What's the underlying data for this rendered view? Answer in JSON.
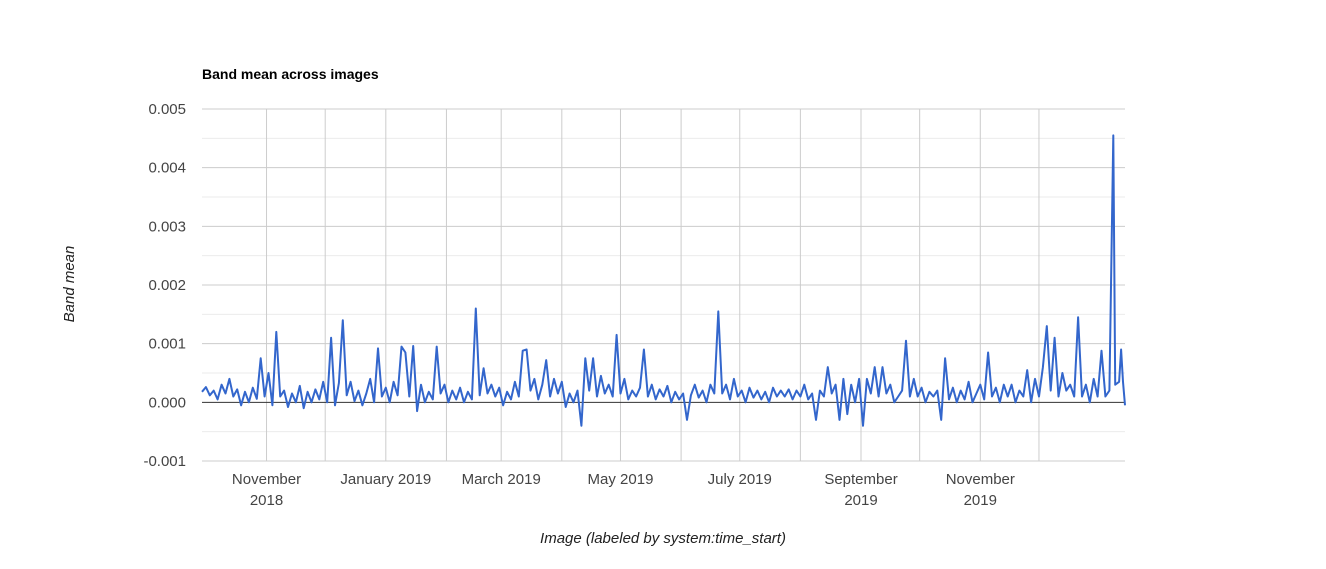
{
  "chart_data": {
    "type": "line",
    "title": "Band mean across images",
    "xlabel": "Image (labeled by system:time_start)",
    "ylabel": "Band mean",
    "ylim": [
      -0.001,
      0.005
    ],
    "xlim": [
      "2018-09-29",
      "2020-01-14"
    ],
    "y_ticks": [
      "-0.001",
      "0.000",
      "0.001",
      "0.002",
      "0.003",
      "0.004",
      "0.005"
    ],
    "y_tick_values": [
      -0.001,
      0,
      0.001,
      0.002,
      0.003,
      0.004,
      0.005
    ],
    "x_ticks": [
      {
        "date": "2018-11-01",
        "lines": [
          "November",
          "2018"
        ]
      },
      {
        "date": "2019-01-01",
        "lines": [
          "January 2019"
        ]
      },
      {
        "date": "2019-03-01",
        "lines": [
          "March 2019"
        ]
      },
      {
        "date": "2019-05-01",
        "lines": [
          "May 2019"
        ]
      },
      {
        "date": "2019-07-01",
        "lines": [
          "July 2019"
        ]
      },
      {
        "date": "2019-09-01",
        "lines": [
          "September",
          "2019"
        ]
      },
      {
        "date": "2019-11-01",
        "lines": [
          "November",
          "2019"
        ]
      }
    ],
    "x_gridlines": [
      "2018-11-01",
      "2018-12-01",
      "2019-01-01",
      "2019-02-01",
      "2019-03-01",
      "2019-04-01",
      "2019-05-01",
      "2019-06-01",
      "2019-07-01",
      "2019-08-01",
      "2019-09-01",
      "2019-10-01",
      "2019-11-01",
      "2019-12-01"
    ],
    "grid": true,
    "legend": "none",
    "series": [
      {
        "color": "#3366cc",
        "points": [
          [
            "2018-09-29",
            0.00018
          ],
          [
            "2018-10-01",
            0.00026
          ],
          [
            "2018-10-03",
            0.00012
          ],
          [
            "2018-10-05",
            0.0002
          ],
          [
            "2018-10-07",
            5e-05
          ],
          [
            "2018-10-09",
            0.0003
          ],
          [
            "2018-10-11",
            0.00015
          ],
          [
            "2018-10-13",
            0.0004
          ],
          [
            "2018-10-15",
            0.0001
          ],
          [
            "2018-10-17",
            0.00022
          ],
          [
            "2018-10-19",
            -5e-05
          ],
          [
            "2018-10-21",
            0.00018
          ],
          [
            "2018-10-23",
            0.0
          ],
          [
            "2018-10-25",
            0.00025
          ],
          [
            "2018-10-27",
            6e-05
          ],
          [
            "2018-10-29",
            0.00075
          ],
          [
            "2018-10-31",
            0.0001
          ],
          [
            "2018-11-02",
            0.0005
          ],
          [
            "2018-11-04",
            -5e-05
          ],
          [
            "2018-11-06",
            0.0012
          ],
          [
            "2018-11-08",
            0.0001
          ],
          [
            "2018-11-10",
            0.0002
          ],
          [
            "2018-11-12",
            -8e-05
          ],
          [
            "2018-11-14",
            0.00015
          ],
          [
            "2018-11-16",
            0.0
          ],
          [
            "2018-11-18",
            0.00028
          ],
          [
            "2018-11-20",
            -0.0001
          ],
          [
            "2018-11-22",
            0.00018
          ],
          [
            "2018-11-24",
            0.0
          ],
          [
            "2018-11-26",
            0.00022
          ],
          [
            "2018-11-28",
            5e-05
          ],
          [
            "2018-11-30",
            0.00035
          ],
          [
            "2018-12-02",
            0.0
          ],
          [
            "2018-12-04",
            0.0011
          ],
          [
            "2018-12-06",
            -5e-05
          ],
          [
            "2018-12-08",
            0.00033
          ],
          [
            "2018-12-10",
            0.0014
          ],
          [
            "2018-12-12",
            0.00012
          ],
          [
            "2018-12-14",
            0.00035
          ],
          [
            "2018-12-16",
            2e-05
          ],
          [
            "2018-12-18",
            0.0002
          ],
          [
            "2018-12-20",
            -5e-05
          ],
          [
            "2018-12-22",
            0.00015
          ],
          [
            "2018-12-24",
            0.0004
          ],
          [
            "2018-12-26",
            0.0
          ],
          [
            "2018-12-28",
            0.00092
          ],
          [
            "2018-12-30",
            0.0001
          ],
          [
            "2019-01-01",
            0.00025
          ],
          [
            "2019-01-03",
            0.0
          ],
          [
            "2019-01-05",
            0.00035
          ],
          [
            "2019-01-07",
            0.00012
          ],
          [
            "2019-01-09",
            0.00095
          ],
          [
            "2019-01-11",
            0.00085
          ],
          [
            "2019-01-13",
            0.0001
          ],
          [
            "2019-01-15",
            0.00096
          ],
          [
            "2019-01-17",
            -0.00015
          ],
          [
            "2019-01-19",
            0.0003
          ],
          [
            "2019-01-21",
            0.0
          ],
          [
            "2019-01-23",
            0.00018
          ],
          [
            "2019-01-25",
            5e-05
          ],
          [
            "2019-01-27",
            0.00095
          ],
          [
            "2019-01-29",
            0.00015
          ],
          [
            "2019-01-31",
            0.0003
          ],
          [
            "2019-02-02",
            0.0
          ],
          [
            "2019-02-04",
            0.0002
          ],
          [
            "2019-02-06",
            5e-05
          ],
          [
            "2019-02-08",
            0.00025
          ],
          [
            "2019-02-10",
            0.0
          ],
          [
            "2019-02-12",
            0.00018
          ],
          [
            "2019-02-14",
            5e-05
          ],
          [
            "2019-02-16",
            0.0016
          ],
          [
            "2019-02-18",
            0.00012
          ],
          [
            "2019-02-20",
            0.00058
          ],
          [
            "2019-02-22",
            0.00015
          ],
          [
            "2019-02-24",
            0.0003
          ],
          [
            "2019-02-26",
            0.0001
          ],
          [
            "2019-02-28",
            0.00025
          ],
          [
            "2019-03-02",
            -5e-05
          ],
          [
            "2019-03-04",
            0.00018
          ],
          [
            "2019-03-06",
            5e-05
          ],
          [
            "2019-03-08",
            0.00035
          ],
          [
            "2019-03-10",
            0.0001
          ],
          [
            "2019-03-12",
            0.00088
          ],
          [
            "2019-03-14",
            0.0009
          ],
          [
            "2019-03-16",
            0.0002
          ],
          [
            "2019-03-18",
            0.0004
          ],
          [
            "2019-03-20",
            5e-05
          ],
          [
            "2019-03-22",
            0.0003
          ],
          [
            "2019-03-24",
            0.00072
          ],
          [
            "2019-03-26",
            0.0001
          ],
          [
            "2019-03-28",
            0.0004
          ],
          [
            "2019-03-30",
            0.00015
          ],
          [
            "2019-04-01",
            0.00035
          ],
          [
            "2019-04-03",
            -8e-05
          ],
          [
            "2019-04-05",
            0.00015
          ],
          [
            "2019-04-07",
            0.0
          ],
          [
            "2019-04-09",
            0.0002
          ],
          [
            "2019-04-11",
            -0.0004
          ],
          [
            "2019-04-13",
            0.00075
          ],
          [
            "2019-04-15",
            0.0002
          ],
          [
            "2019-04-17",
            0.00075
          ],
          [
            "2019-04-19",
            0.0001
          ],
          [
            "2019-04-21",
            0.00045
          ],
          [
            "2019-04-23",
            0.00015
          ],
          [
            "2019-04-25",
            0.0003
          ],
          [
            "2019-04-27",
            0.0001
          ],
          [
            "2019-04-29",
            0.00115
          ],
          [
            "2019-05-01",
            0.00015
          ],
          [
            "2019-05-03",
            0.0004
          ],
          [
            "2019-05-05",
            5e-05
          ],
          [
            "2019-05-07",
            0.0002
          ],
          [
            "2019-05-09",
            0.0001
          ],
          [
            "2019-05-11",
            0.00025
          ],
          [
            "2019-05-13",
            0.0009
          ],
          [
            "2019-05-15",
            0.0001
          ],
          [
            "2019-05-17",
            0.0003
          ],
          [
            "2019-05-19",
            5e-05
          ],
          [
            "2019-05-21",
            0.00022
          ],
          [
            "2019-05-23",
            0.0001
          ],
          [
            "2019-05-25",
            0.00028
          ],
          [
            "2019-05-27",
            0.0
          ],
          [
            "2019-05-29",
            0.00018
          ],
          [
            "2019-05-31",
            5e-05
          ],
          [
            "2019-06-02",
            0.00015
          ],
          [
            "2019-06-04",
            -0.0003
          ],
          [
            "2019-06-06",
            0.00012
          ],
          [
            "2019-06-08",
            0.0003
          ],
          [
            "2019-06-10",
            8e-05
          ],
          [
            "2019-06-12",
            0.0002
          ],
          [
            "2019-06-14",
            0.0
          ],
          [
            "2019-06-16",
            0.0003
          ],
          [
            "2019-06-18",
            0.00015
          ],
          [
            "2019-06-20",
            0.00155
          ],
          [
            "2019-06-22",
            0.00015
          ],
          [
            "2019-06-24",
            0.0003
          ],
          [
            "2019-06-26",
            5e-05
          ],
          [
            "2019-06-28",
            0.0004
          ],
          [
            "2019-06-30",
            0.0001
          ],
          [
            "2019-07-02",
            0.0002
          ],
          [
            "2019-07-04",
            0.0
          ],
          [
            "2019-07-06",
            0.00025
          ],
          [
            "2019-07-08",
            8e-05
          ],
          [
            "2019-07-10",
            0.0002
          ],
          [
            "2019-07-12",
            5e-05
          ],
          [
            "2019-07-14",
            0.00018
          ],
          [
            "2019-07-16",
            0.0
          ],
          [
            "2019-07-18",
            0.00025
          ],
          [
            "2019-07-20",
            0.0001
          ],
          [
            "2019-07-22",
            0.0002
          ],
          [
            "2019-07-24",
            0.0001
          ],
          [
            "2019-07-26",
            0.00022
          ],
          [
            "2019-07-28",
            5e-05
          ],
          [
            "2019-07-30",
            0.0002
          ],
          [
            "2019-08-01",
            0.0001
          ],
          [
            "2019-08-03",
            0.0003
          ],
          [
            "2019-08-05",
            5e-05
          ],
          [
            "2019-08-07",
            0.00015
          ],
          [
            "2019-08-09",
            -0.0003
          ],
          [
            "2019-08-11",
            0.0002
          ],
          [
            "2019-08-13",
            0.0001
          ],
          [
            "2019-08-15",
            0.0006
          ],
          [
            "2019-08-17",
            0.00015
          ],
          [
            "2019-08-19",
            0.0003
          ],
          [
            "2019-08-21",
            -0.0003
          ],
          [
            "2019-08-23",
            0.0004
          ],
          [
            "2019-08-25",
            -0.0002
          ],
          [
            "2019-08-27",
            0.0003
          ],
          [
            "2019-08-29",
            0.0
          ],
          [
            "2019-08-31",
            0.0004
          ],
          [
            "2019-09-02",
            -0.0004
          ],
          [
            "2019-09-04",
            0.0004
          ],
          [
            "2019-09-06",
            0.00015
          ],
          [
            "2019-09-08",
            0.0006
          ],
          [
            "2019-09-10",
            0.0001
          ],
          [
            "2019-09-12",
            0.0006
          ],
          [
            "2019-09-14",
            0.00015
          ],
          [
            "2019-09-16",
            0.0003
          ],
          [
            "2019-09-18",
            0.0
          ],
          [
            "2019-09-20",
            0.0001
          ],
          [
            "2019-09-22",
            0.0002
          ],
          [
            "2019-09-24",
            0.00105
          ],
          [
            "2019-09-26",
            0.0001
          ],
          [
            "2019-09-28",
            0.0004
          ],
          [
            "2019-09-30",
            0.0001
          ],
          [
            "2019-10-02",
            0.00025
          ],
          [
            "2019-10-04",
            0.0
          ],
          [
            "2019-10-06",
            0.00018
          ],
          [
            "2019-10-08",
            0.0001
          ],
          [
            "2019-10-10",
            0.0002
          ],
          [
            "2019-10-12",
            -0.0003
          ],
          [
            "2019-10-14",
            0.00075
          ],
          [
            "2019-10-16",
            5e-05
          ],
          [
            "2019-10-18",
            0.00025
          ],
          [
            "2019-10-20",
            0.0
          ],
          [
            "2019-10-22",
            0.0002
          ],
          [
            "2019-10-24",
            5e-05
          ],
          [
            "2019-10-26",
            0.00035
          ],
          [
            "2019-10-28",
            0.0
          ],
          [
            "2019-10-30",
            0.00015
          ],
          [
            "2019-11-01",
            0.0003
          ],
          [
            "2019-11-03",
            5e-05
          ],
          [
            "2019-11-05",
            0.00085
          ],
          [
            "2019-11-07",
            0.0001
          ],
          [
            "2019-11-09",
            0.00025
          ],
          [
            "2019-11-11",
            0.0
          ],
          [
            "2019-11-13",
            0.0003
          ],
          [
            "2019-11-15",
            0.0001
          ],
          [
            "2019-11-17",
            0.0003
          ],
          [
            "2019-11-19",
            0.0
          ],
          [
            "2019-11-21",
            0.0002
          ],
          [
            "2019-11-23",
            0.0001
          ],
          [
            "2019-11-25",
            0.00055
          ],
          [
            "2019-11-27",
            0.0
          ],
          [
            "2019-11-29",
            0.0004
          ],
          [
            "2019-12-01",
            0.0001
          ],
          [
            "2019-12-03",
            0.0006
          ],
          [
            "2019-12-05",
            0.0013
          ],
          [
            "2019-12-07",
            0.0002
          ],
          [
            "2019-12-09",
            0.0011
          ],
          [
            "2019-12-11",
            0.0001
          ],
          [
            "2019-12-13",
            0.0005
          ],
          [
            "2019-12-15",
            0.0002
          ],
          [
            "2019-12-17",
            0.0003
          ],
          [
            "2019-12-19",
            0.0001
          ],
          [
            "2019-12-21",
            0.00145
          ],
          [
            "2019-12-23",
            0.0001
          ],
          [
            "2019-12-25",
            0.0003
          ],
          [
            "2019-12-27",
            0.0
          ],
          [
            "2019-12-29",
            0.0004
          ],
          [
            "2019-12-31",
            0.0001
          ],
          [
            "2020-01-02",
            0.00088
          ],
          [
            "2020-01-04",
            0.0001
          ],
          [
            "2020-01-06",
            0.0002
          ],
          [
            "2020-01-08",
            0.00455
          ],
          [
            "2020-01-09",
            0.0003
          ],
          [
            "2020-01-11",
            0.00035
          ],
          [
            "2020-01-12",
            0.0009
          ],
          [
            "2020-01-13",
            0.00035
          ],
          [
            "2020-01-14",
            -5e-05
          ]
        ]
      }
    ]
  }
}
